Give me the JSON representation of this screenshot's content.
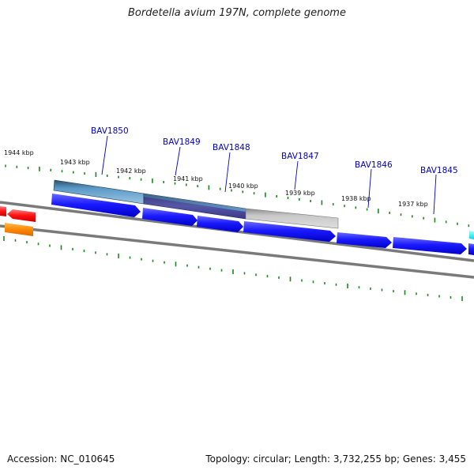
{
  "title": "Bordetella avium 197N, complete genome",
  "footer": {
    "accession": "Accession: NC_010645",
    "summary": "Topology: circular; Length: 3,732,255 bp; Genes: 3,455"
  },
  "colors": {
    "backbone": "#7a7a7a",
    "tick": "#1a8a1a",
    "gene_forward": "#0000ee",
    "gene_label": "#0000cc",
    "feature_red": "#ee0000",
    "feature_orange": "#ff8800",
    "feature_cyan": "#00e5ee"
  },
  "scale_labels": [
    "1944 kbp",
    "1943 kbp",
    "1942 kbp",
    "1941 kbp",
    "1940 kbp",
    "1939 kbp",
    "1938 kbp",
    "1937 kbp"
  ],
  "genes": [
    "BAV1850",
    "BAV1849",
    "BAV1848",
    "BAV1847",
    "BAV1846",
    "BAV1845"
  ]
}
